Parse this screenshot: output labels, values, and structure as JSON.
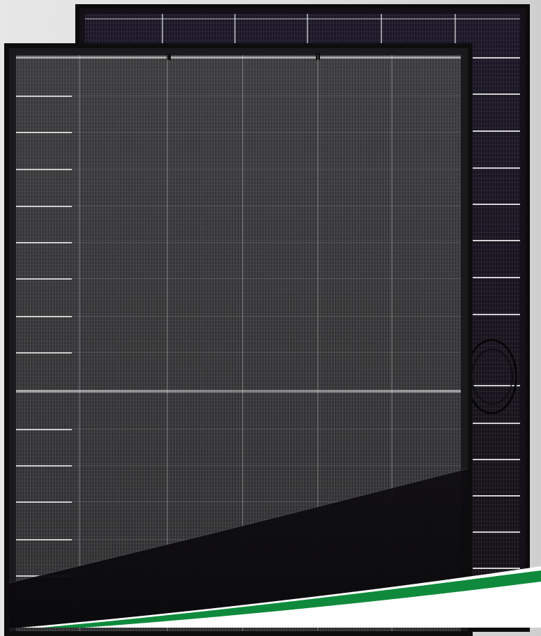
{
  "image": {
    "subject": "solar-panels",
    "panels": [
      {
        "id": "back",
        "tone": "dark-blue-black"
      },
      {
        "id": "front",
        "tone": "full-black"
      }
    ],
    "colors": {
      "background": "#dcdcdc",
      "frame": "#0d0d0e",
      "accent_green": "#0f8a3c",
      "swoosh_white": "#ffffff"
    }
  }
}
